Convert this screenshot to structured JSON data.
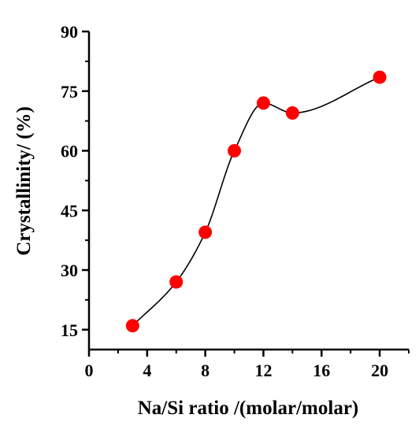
{
  "chart_data": {
    "type": "scatter",
    "xlabel": "Na/Si ratio /(molar/molar)",
    "ylabel": "Crystallinity/ (%)",
    "xlim": [
      0,
      22
    ],
    "ylim": [
      10,
      90
    ],
    "xticks": [
      0,
      4,
      8,
      12,
      16,
      20
    ],
    "yticks": [
      15,
      30,
      45,
      60,
      75,
      90
    ],
    "grid": false,
    "series": [
      {
        "marker_color": "#ff0000",
        "line_color": "#000000",
        "line_style": "smooth",
        "points": [
          {
            "x": 3,
            "y": 16
          },
          {
            "x": 6,
            "y": 27
          },
          {
            "x": 8,
            "y": 39.5
          },
          {
            "x": 10,
            "y": 60
          },
          {
            "x": 12,
            "y": 72
          },
          {
            "x": 14,
            "y": 69.5
          },
          {
            "x": 20,
            "y": 78.5
          }
        ]
      }
    ]
  }
}
